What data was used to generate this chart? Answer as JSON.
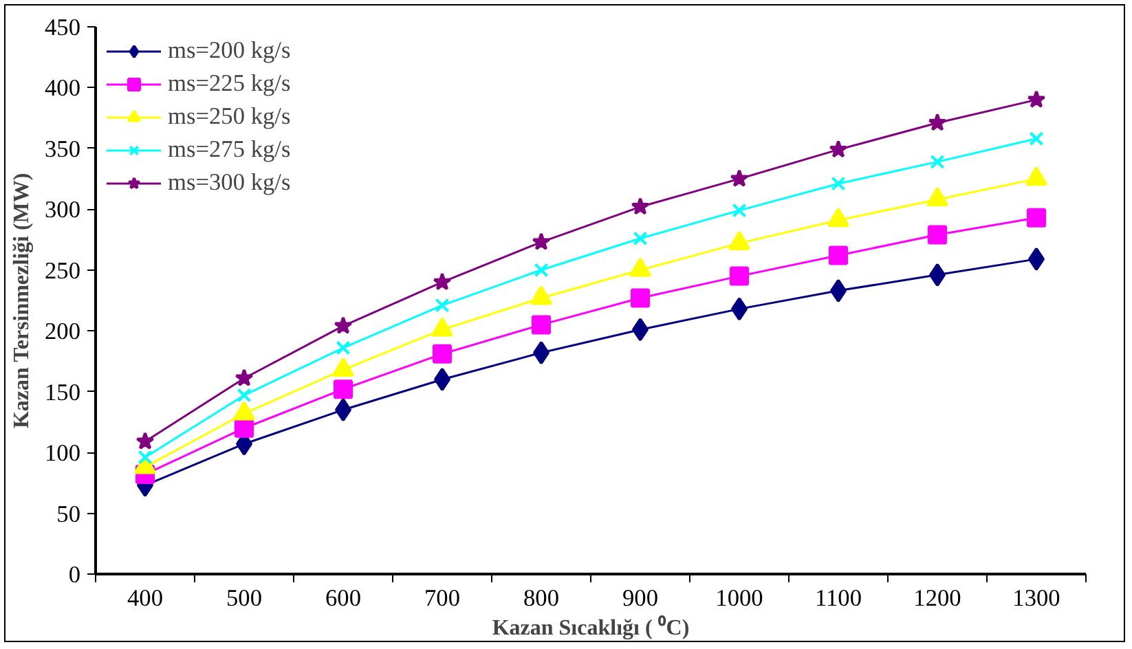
{
  "chart_data": {
    "type": "line",
    "xlabel": "Kazan Sıcaklığı ( ⁰C)",
    "ylabel": "Kazan Tersinmezliği (MW)",
    "categories": [
      "400",
      "500",
      "600",
      "700",
      "800",
      "900",
      "1000",
      "1100",
      "1200",
      "1300"
    ],
    "ylim": [
      0,
      450
    ],
    "yticks": [
      0,
      50,
      100,
      150,
      200,
      250,
      300,
      350,
      400,
      450
    ],
    "grid": false,
    "legend": "top left",
    "series": [
      {
        "name": "ms=200 kg/s",
        "color": "#000080",
        "marker": "diamond",
        "values": [
          73,
          107,
          135,
          160,
          182,
          201,
          218,
          233,
          246,
          259
        ]
      },
      {
        "name": "ms=225 kg/s",
        "color": "#ff00ff",
        "marker": "square",
        "values": [
          82,
          120,
          152,
          181,
          205,
          227,
          245,
          262,
          279,
          293
        ]
      },
      {
        "name": "ms=250 kg/s",
        "color": "#ffff00",
        "marker": "triangle",
        "values": [
          88,
          132,
          168,
          201,
          227,
          250,
          272,
          291,
          308,
          325
        ]
      },
      {
        "name": "ms=275 kg/s",
        "color": "#00ffff",
        "marker": "cross",
        "values": [
          96,
          147,
          186,
          221,
          250,
          276,
          299,
          321,
          339,
          358
        ]
      },
      {
        "name": "ms=300 kg/s",
        "color": "#800080",
        "marker": "star",
        "values": [
          109,
          161,
          204,
          240,
          273,
          302,
          325,
          349,
          371,
          390
        ]
      }
    ]
  }
}
